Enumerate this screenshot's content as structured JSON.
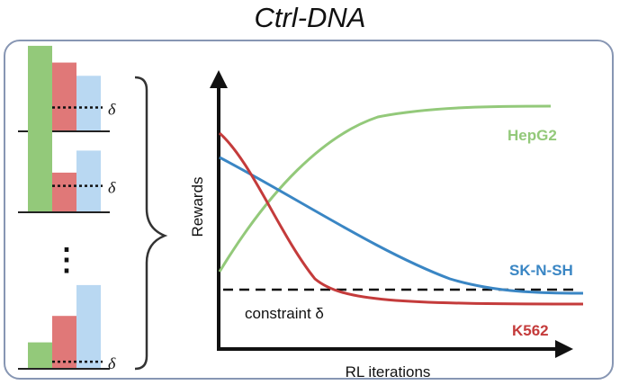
{
  "title": "Ctrl-DNA",
  "colors": {
    "green": "#93c97a",
    "red": "#e07878",
    "blue": "#b9d8f2",
    "hepg2": "#93c97a",
    "sknsh": "#3a86c4",
    "k562": "#c43b3b",
    "frame": "#8796b3"
  },
  "left_panel": {
    "delta_symbol": "δ",
    "ellipsis": "⋮",
    "bar_groups": [
      {
        "values": [
          0.97,
          0.78,
          0.63
        ],
        "threshold": 0.27
      },
      {
        "values": [
          0.97,
          0.45,
          0.7
        ],
        "threshold": 0.3
      },
      {
        "values": [
          0.3,
          0.6,
          0.95
        ],
        "threshold": 0.08
      }
    ]
  },
  "chart": {
    "xlabel": "RL iterations",
    "ylabel": "Rewards",
    "constraint_label": "constraint δ",
    "series": [
      {
        "name": "HepG2",
        "key": "hepg2"
      },
      {
        "name": "SK-N-SH",
        "key": "sknsh"
      },
      {
        "name": "K562",
        "key": "k562"
      }
    ]
  }
}
